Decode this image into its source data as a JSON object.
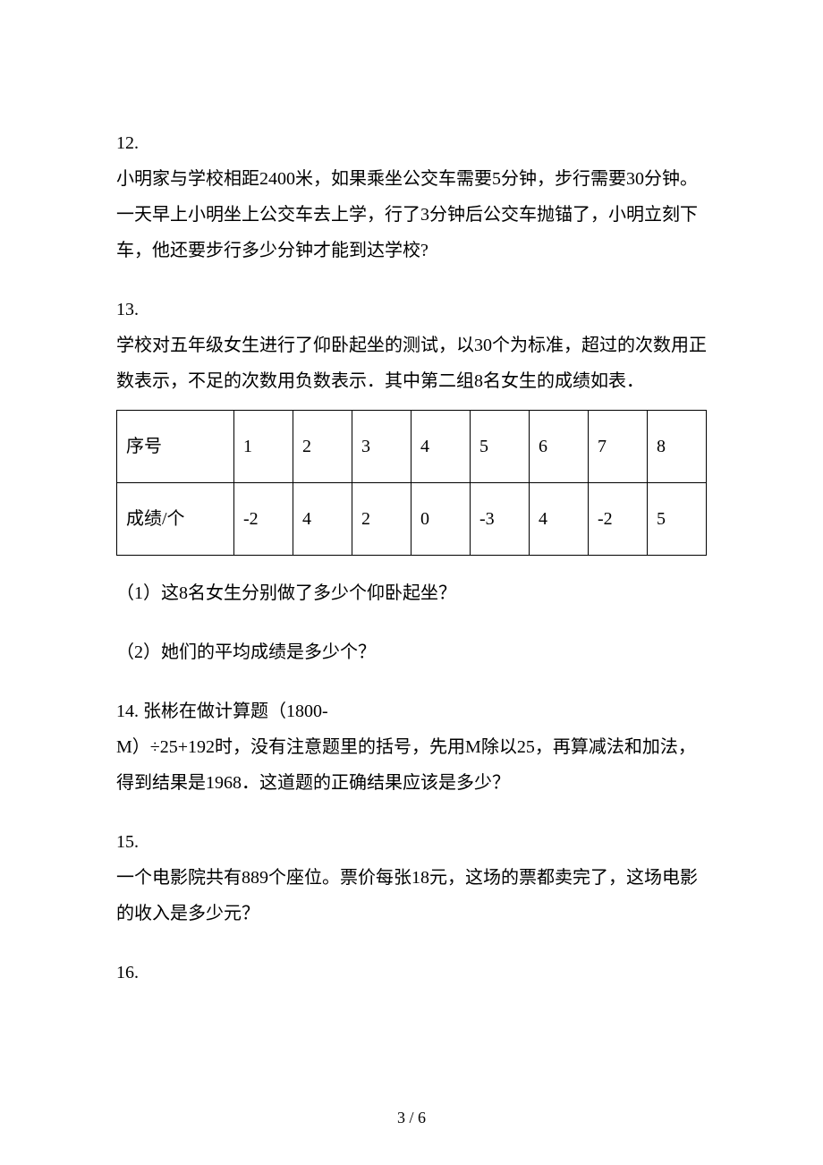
{
  "text_color": "#000000",
  "background_color": "#ffffff",
  "border_color": "#000000",
  "base_fontsize": 20,
  "q12": {
    "num": "12.",
    "body": "小明家与学校相距2400米，如果乘坐公交车需要5分钟，步行需要30分钟。一天早上小明坐上公交车去上学，行了3分钟后公交车抛锚了，小明立刻下车，他还要步行多少分钟才能到达学校?"
  },
  "q13": {
    "num": "13.",
    "intro": "学校对五年级女生进行了仰卧起坐的测试，以30个为标准，超过的次数用正数表示，不足的次数用负数表示．其中第二组8名女生的成绩如表．",
    "table": {
      "row1_label": "序号",
      "row2_label": "成绩/个",
      "cols": [
        "1",
        "2",
        "3",
        "4",
        "5",
        "6",
        "7",
        "8"
      ],
      "vals": [
        "-2",
        "4",
        "2",
        "0",
        "-3",
        "4",
        "-2",
        "5"
      ]
    },
    "sub1": "（1）这8名女生分别做了多少个仰卧起坐？",
    "sub2": "（2）她们的平均成绩是多少个？"
  },
  "q14": {
    "line1": "14.  张彬在做计算题（1800-",
    "line2": "M）÷25+192时，没有注意题里的括号，先用M除以25，再算减法和加法，得到结果是1968．这道题的正确结果应该是多少？"
  },
  "q15": {
    "num": "15.",
    "body": "一个电影院共有889个座位。票价每张18元，这场的票都卖完了，这场电影的收入是多少元？"
  },
  "q16": {
    "num": "16."
  },
  "footer": "3 / 6"
}
